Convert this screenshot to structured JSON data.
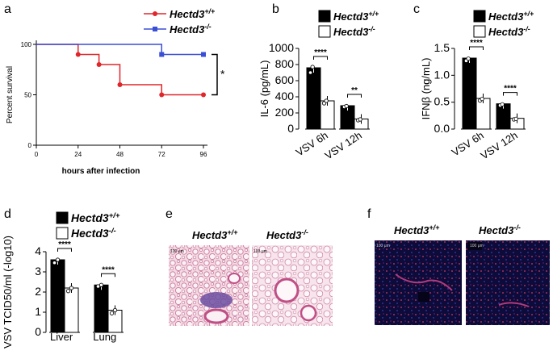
{
  "panel_letters": [
    "a",
    "b",
    "c",
    "d",
    "e",
    "f"
  ],
  "genotype": {
    "wt": "Hectd3",
    "wt_sup": "+/+",
    "ko": "Hectd3",
    "ko_sup": "-/-"
  },
  "colors": {
    "wt_line": "#e0262a",
    "ko_line": "#3a4fd6",
    "bar_wt": "#000000",
    "bar_ko": "#ffffff"
  },
  "chart_data": [
    {
      "panel": "a",
      "type": "line",
      "step": true,
      "xlabel": "hours after infection",
      "ylabel": "Percent survival",
      "xticks": [
        "0",
        "24",
        "48",
        "72",
        "96"
      ],
      "yticks": [
        "0",
        "50",
        "100"
      ],
      "xlim": [
        0,
        96
      ],
      "ylim": [
        0,
        100
      ],
      "significance": "*",
      "series": [
        {
          "name": "Hectd3 +/+",
          "color": "#e0262a",
          "x": [
            0,
            24,
            36,
            48,
            72,
            96
          ],
          "y": [
            100,
            90,
            80,
            60,
            50,
            50
          ],
          "markers_x": [
            24,
            36,
            48,
            72,
            96
          ]
        },
        {
          "name": "Hectd3 -/-",
          "color": "#3a4fd6",
          "x": [
            0,
            72,
            96
          ],
          "y": [
            100,
            90,
            90
          ],
          "markers_x": [
            72,
            96
          ]
        }
      ]
    },
    {
      "panel": "b",
      "type": "bar",
      "ylabel": "IL-6 (pg/mL)",
      "yticks": [
        "0",
        "200",
        "400",
        "600",
        "800",
        "1000"
      ],
      "ylim": [
        0,
        1000
      ],
      "categories": [
        "VSV 6h",
        "VSV 12h"
      ],
      "series": [
        {
          "name": "Hectd3 +/+",
          "values": [
            760,
            290
          ],
          "points": [
            [
              700,
              770,
              800,
              790
            ],
            [
              275,
              285,
              295,
              300
            ]
          ]
        },
        {
          "name": "Hectd3 -/-",
          "values": [
            350,
            125
          ],
          "points": [
            [
              320,
              350,
              365,
              360
            ],
            [
              110,
              120,
              130,
              135
            ]
          ]
        }
      ],
      "significance": [
        "****",
        "**"
      ]
    },
    {
      "panel": "c",
      "type": "bar",
      "ylabel": "IFNβ (ng/mL)",
      "yticks": [
        "0.0",
        "0.5",
        "1.0",
        "1.5"
      ],
      "ylim": [
        0,
        1.5
      ],
      "categories": [
        "VSV 6h",
        "VSV 12h"
      ],
      "series": [
        {
          "name": "Hectd3 +/+",
          "values": [
            1.32,
            0.47
          ],
          "points": [
            [
              1.27,
              1.31,
              1.35,
              1.37
            ],
            [
              0.44,
              0.46,
              0.48,
              0.49
            ]
          ]
        },
        {
          "name": "Hectd3 -/-",
          "values": [
            0.57,
            0.2
          ],
          "points": [
            [
              0.53,
              0.56,
              0.58,
              0.6
            ],
            [
              0.18,
              0.19,
              0.2,
              0.21
            ]
          ]
        }
      ],
      "significance": [
        "****",
        "****"
      ]
    },
    {
      "panel": "d",
      "type": "bar",
      "ylabel": "VSV TCID50/ml (-log10)",
      "yticks": [
        "0",
        "1",
        "2",
        "3",
        "4"
      ],
      "ylim": [
        0,
        4
      ],
      "categories": [
        "Liver",
        "Lung"
      ],
      "series": [
        {
          "name": "Hectd3 +/+",
          "values": [
            3.6,
            2.35
          ],
          "points": [
            [
              3.45,
              3.6,
              3.7
            ],
            [
              2.28,
              2.35,
              2.42
            ]
          ]
        },
        {
          "name": "Hectd3 -/-",
          "values": [
            2.2,
            1.1
          ],
          "points": [
            [
              2.05,
              2.2,
              2.35
            ],
            [
              0.95,
              1.1,
              1.2
            ]
          ]
        }
      ],
      "significance": [
        "****",
        "****"
      ]
    }
  ],
  "panel_e": {
    "scale_bar": "100 μm"
  },
  "panel_f": {
    "scale_bar": "100 μm"
  }
}
